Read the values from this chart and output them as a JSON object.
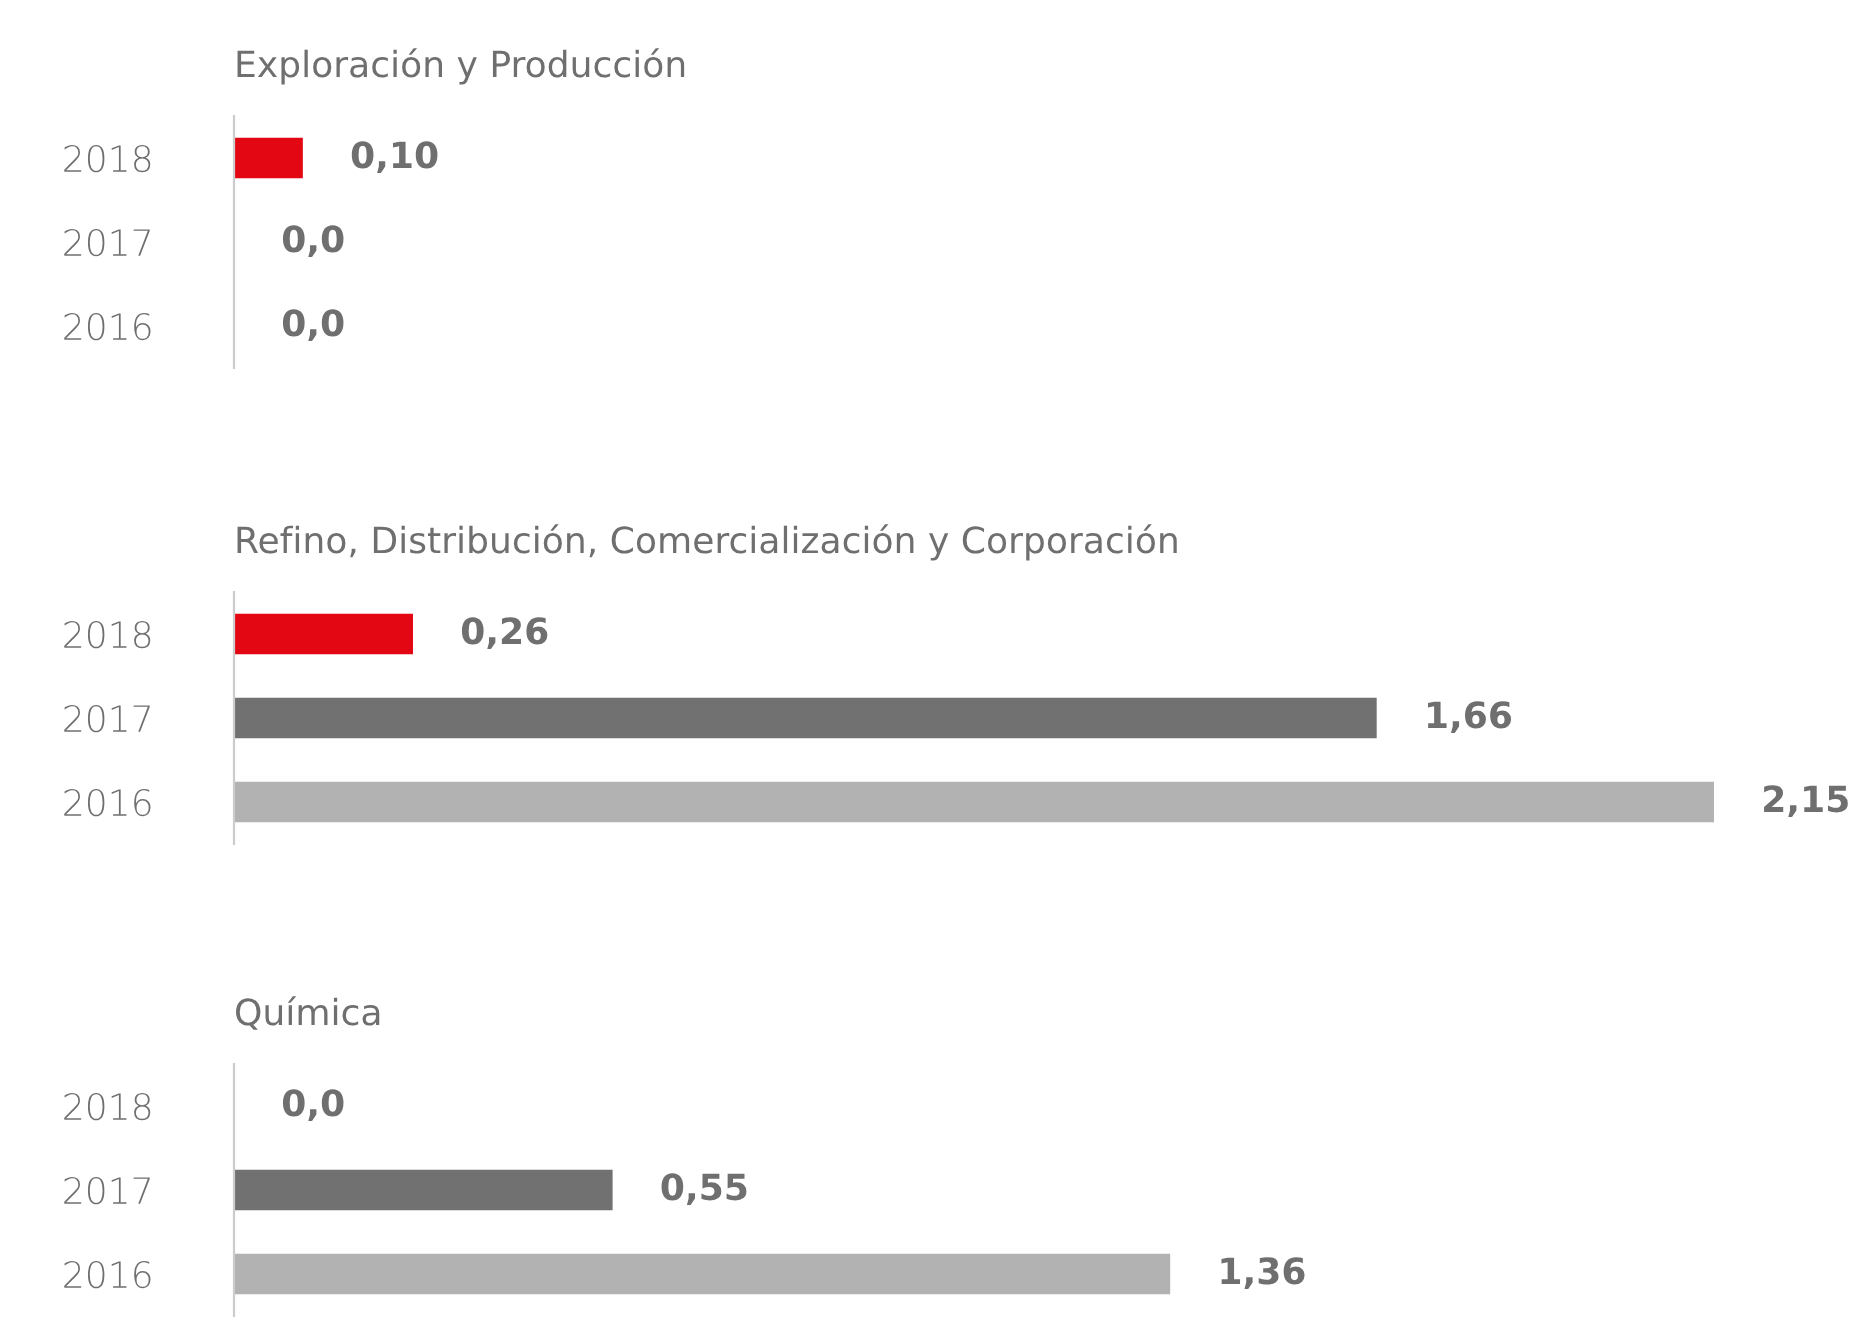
{
  "chart_data": [
    {
      "type": "bar",
      "orientation": "horizontal",
      "title": "Exploración y Producción",
      "categories": [
        "2018",
        "2017",
        "2016"
      ],
      "values": [
        0.1,
        0.0,
        0.0
      ],
      "colors": [
        "#e30613",
        "#717171",
        "#b2b2b2"
      ],
      "value_labels": [
        "0,10",
        "0,0",
        "0,0"
      ]
    },
    {
      "type": "bar",
      "orientation": "horizontal",
      "title": "Refino, Distribución, Comercialización y Corporación",
      "categories": [
        "2018",
        "2017",
        "2016"
      ],
      "values": [
        0.26,
        1.66,
        2.15
      ],
      "colors": [
        "#e30613",
        "#717171",
        "#b2b2b2"
      ],
      "value_labels": [
        "0,26",
        "1,66",
        "2,15"
      ]
    },
    {
      "type": "bar",
      "orientation": "horizontal",
      "title": "Química",
      "categories": [
        "2018",
        "2017",
        "2016"
      ],
      "values": [
        0.0,
        0.55,
        1.36
      ],
      "colors": [
        "#e30613",
        "#717171",
        "#b2b2b2"
      ],
      "value_labels": [
        "0,0",
        "0,55",
        "1,36"
      ]
    }
  ]
}
